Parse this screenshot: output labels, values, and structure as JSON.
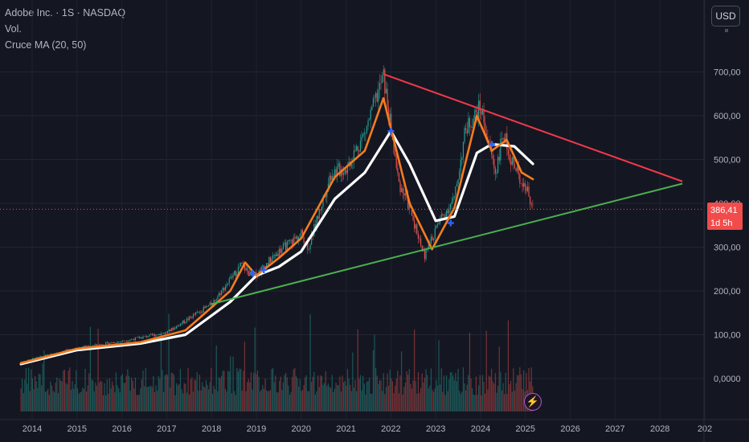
{
  "legend": {
    "symbol": "Adobe Inc. · 1S · NASDAQ",
    "vol_label": "Vol.",
    "indicator": "Cruce MA (20, 50)"
  },
  "toolbar": {
    "currency_label": "USD"
  },
  "price_scale": {
    "ticks": [
      "700,00",
      "600,00",
      "500,00",
      "400,00",
      "300,00",
      "200,00",
      "100,00",
      "0,0000"
    ],
    "current_price": "386,41",
    "countdown": "1d 5h"
  },
  "time_scale": {
    "ticks": [
      "2014",
      "2015",
      "2016",
      "2017",
      "2018",
      "2019",
      "2020",
      "2021",
      "2022",
      "2023",
      "2024",
      "2025",
      "2026",
      "2027",
      "2028",
      "202"
    ]
  },
  "colors": {
    "background": "#141722",
    "bull": "#26a69a",
    "bear": "#ef5350",
    "ma_fast": "#f57c1f",
    "ma_slow": "#ffffff",
    "resistance": "#f2394a",
    "support": "#4caf50",
    "cross_marker": "#2962ff"
  },
  "icons": {
    "alert": "lightning-icon"
  },
  "chart_data": {
    "type": "line",
    "title": "Adobe Inc. · 1S · NASDAQ",
    "ylim": [
      0,
      700
    ],
    "series": [
      {
        "name": "Cruce MA (20, 50)",
        "values": []
      }
    ],
    "price_anchors": [
      [
        "2013-10",
        38
      ],
      [
        "2015-01",
        70
      ],
      [
        "2016-01",
        85
      ],
      [
        "2017-01",
        105
      ],
      [
        "2018-01",
        170
      ],
      [
        "2018-09",
        260
      ],
      [
        "2018-12",
        230
      ],
      [
        "2019-07",
        290
      ],
      [
        "2020-01",
        330
      ],
      [
        "2020-03",
        300
      ],
      [
        "2020-09",
        470
      ],
      [
        "2021-01",
        480
      ],
      [
        "2021-06",
        560
      ],
      [
        "2021-11",
        690
      ],
      [
        "2022-03",
        450
      ],
      [
        "2022-06",
        390
      ],
      [
        "2022-10",
        280
      ],
      [
        "2023-02",
        360
      ],
      [
        "2023-06",
        410
      ],
      [
        "2023-09",
        570
      ],
      [
        "2024-01",
        620
      ],
      [
        "2024-05",
        470
      ],
      [
        "2024-07",
        560
      ],
      [
        "2024-10",
        480
      ],
      [
        "2025-01",
        440
      ],
      [
        "2025-03",
        386.41
      ]
    ],
    "ma_fast": [
      [
        "2013-10",
        35
      ],
      [
        "2015-01",
        68
      ],
      [
        "2016-06",
        83
      ],
      [
        "2017-06",
        110
      ],
      [
        "2018-06",
        200
      ],
      [
        "2018-10",
        265
      ],
      [
        "2019-01",
        235
      ],
      [
        "2019-07",
        275
      ],
      [
        "2020-01",
        320
      ],
      [
        "2020-10",
        460
      ],
      [
        "2021-06",
        520
      ],
      [
        "2021-11",
        640
      ],
      [
        "2022-06",
        400
      ],
      [
        "2022-12",
        295
      ],
      [
        "2023-06",
        390
      ],
      [
        "2023-12",
        600
      ],
      [
        "2024-04",
        520
      ],
      [
        "2024-08",
        545
      ],
      [
        "2024-12",
        470
      ],
      [
        "2025-03",
        455
      ]
    ],
    "ma_slow": [
      [
        "2013-10",
        33
      ],
      [
        "2015-01",
        65
      ],
      [
        "2016-06",
        80
      ],
      [
        "2017-06",
        100
      ],
      [
        "2018-06",
        175
      ],
      [
        "2019-01",
        235
      ],
      [
        "2019-07",
        255
      ],
      [
        "2020-01",
        290
      ],
      [
        "2020-10",
        410
      ],
      [
        "2021-06",
        470
      ],
      [
        "2022-01",
        565
      ],
      [
        "2022-06",
        490
      ],
      [
        "2023-01",
        360
      ],
      [
        "2023-06",
        370
      ],
      [
        "2023-12",
        515
      ],
      [
        "2024-04",
        535
      ],
      [
        "2024-10",
        530
      ],
      [
        "2025-03",
        490
      ]
    ],
    "crosses": [
      [
        "2018-12",
        240
      ],
      [
        "2019-03",
        248
      ],
      [
        "2022-01",
        565
      ],
      [
        "2023-05",
        355
      ],
      [
        "2024-04",
        535
      ]
    ],
    "trendlines": {
      "resistance": [
        [
          "2021-11",
          695
        ],
        [
          "2028-07",
          450
        ]
      ],
      "support": [
        [
          "2018-01",
          170
        ],
        [
          "2028-07",
          445
        ]
      ]
    }
  }
}
